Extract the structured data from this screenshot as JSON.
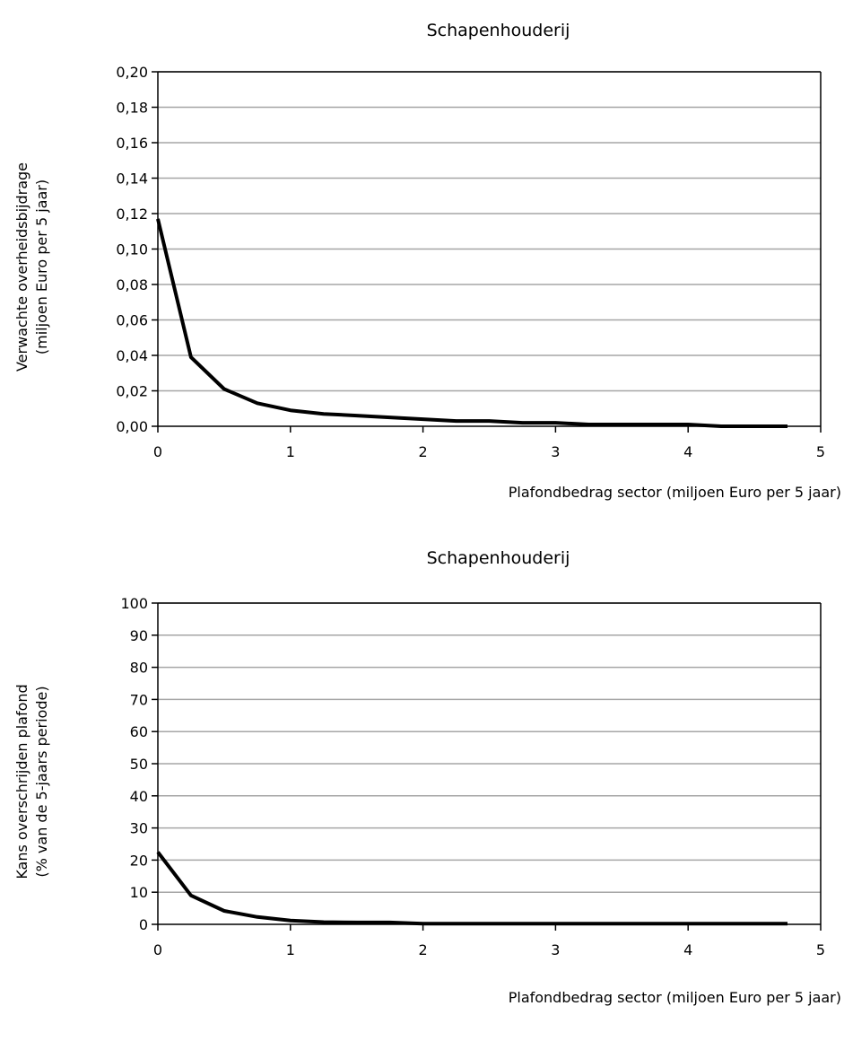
{
  "chart_data": [
    {
      "type": "line",
      "title": "Schapenhouderij",
      "xlabel": "Plafondbedrag sector (miljoen Euro per 5 jaar)",
      "ylabel": [
        "Verwachte overheidsbijdrage",
        "(miljoen Euro per 5 jaar)"
      ],
      "xlim": [
        0,
        5
      ],
      "ylim": [
        0,
        0.2
      ],
      "x_ticks": [
        "0",
        "1",
        "2",
        "3",
        "4",
        "5"
      ],
      "x_tick_values": [
        0,
        1,
        2,
        3,
        4,
        5
      ],
      "y_ticks": [
        "0,00",
        "0,02",
        "0,04",
        "0,06",
        "0,08",
        "0,10",
        "0,12",
        "0,14",
        "0,16",
        "0,18",
        "0,20"
      ],
      "y_tick_values": [
        0,
        0.02,
        0.04,
        0.06,
        0.08,
        0.1,
        0.12,
        0.14,
        0.16,
        0.18,
        0.2
      ],
      "grid": true,
      "legend": "none",
      "series": [
        {
          "color": "#000000",
          "x": [
            0,
            0.25,
            0.5,
            0.75,
            1.0,
            1.25,
            1.5,
            1.75,
            2.0,
            2.25,
            2.5,
            2.75,
            3.0,
            3.25,
            3.5,
            3.75,
            4.0,
            4.25,
            4.5,
            4.75
          ],
          "y": [
            0.117,
            0.039,
            0.021,
            0.013,
            0.009,
            0.007,
            0.006,
            0.005,
            0.004,
            0.003,
            0.003,
            0.002,
            0.002,
            0.001,
            0.001,
            0.001,
            0.001,
            0.0,
            0.0,
            0.0
          ]
        }
      ]
    },
    {
      "type": "line",
      "title": "Schapenhouderij",
      "xlabel": "Plafondbedrag sector (miljoen Euro per 5 jaar)",
      "ylabel": [
        "Kans overschrijden plafond",
        "(% van de 5-jaars periode)"
      ],
      "xlim": [
        0,
        5
      ],
      "ylim": [
        0,
        100
      ],
      "x_ticks": [
        "0",
        "1",
        "2",
        "3",
        "4",
        "5"
      ],
      "x_tick_values": [
        0,
        1,
        2,
        3,
        4,
        5
      ],
      "y_ticks": [
        "0",
        "10",
        "20",
        "30",
        "40",
        "50",
        "60",
        "70",
        "80",
        "90",
        "100"
      ],
      "y_tick_values": [
        0,
        10,
        20,
        30,
        40,
        50,
        60,
        70,
        80,
        90,
        100
      ],
      "grid": true,
      "legend": "none",
      "series": [
        {
          "color": "#000000",
          "x": [
            0,
            0.25,
            0.5,
            0.75,
            1.0,
            1.25,
            1.5,
            1.75,
            2.0,
            2.25,
            2.5,
            2.75,
            3.0,
            3.25,
            3.5,
            3.75,
            4.0,
            4.25,
            4.5,
            4.75
          ],
          "y": [
            22.5,
            9.0,
            4.2,
            2.3,
            1.2,
            0.7,
            0.6,
            0.6,
            0.2,
            0.2,
            0.2,
            0.2,
            0.2,
            0.2,
            0.2,
            0.2,
            0.2,
            0.2,
            0.2,
            0.2
          ]
        }
      ]
    }
  ]
}
